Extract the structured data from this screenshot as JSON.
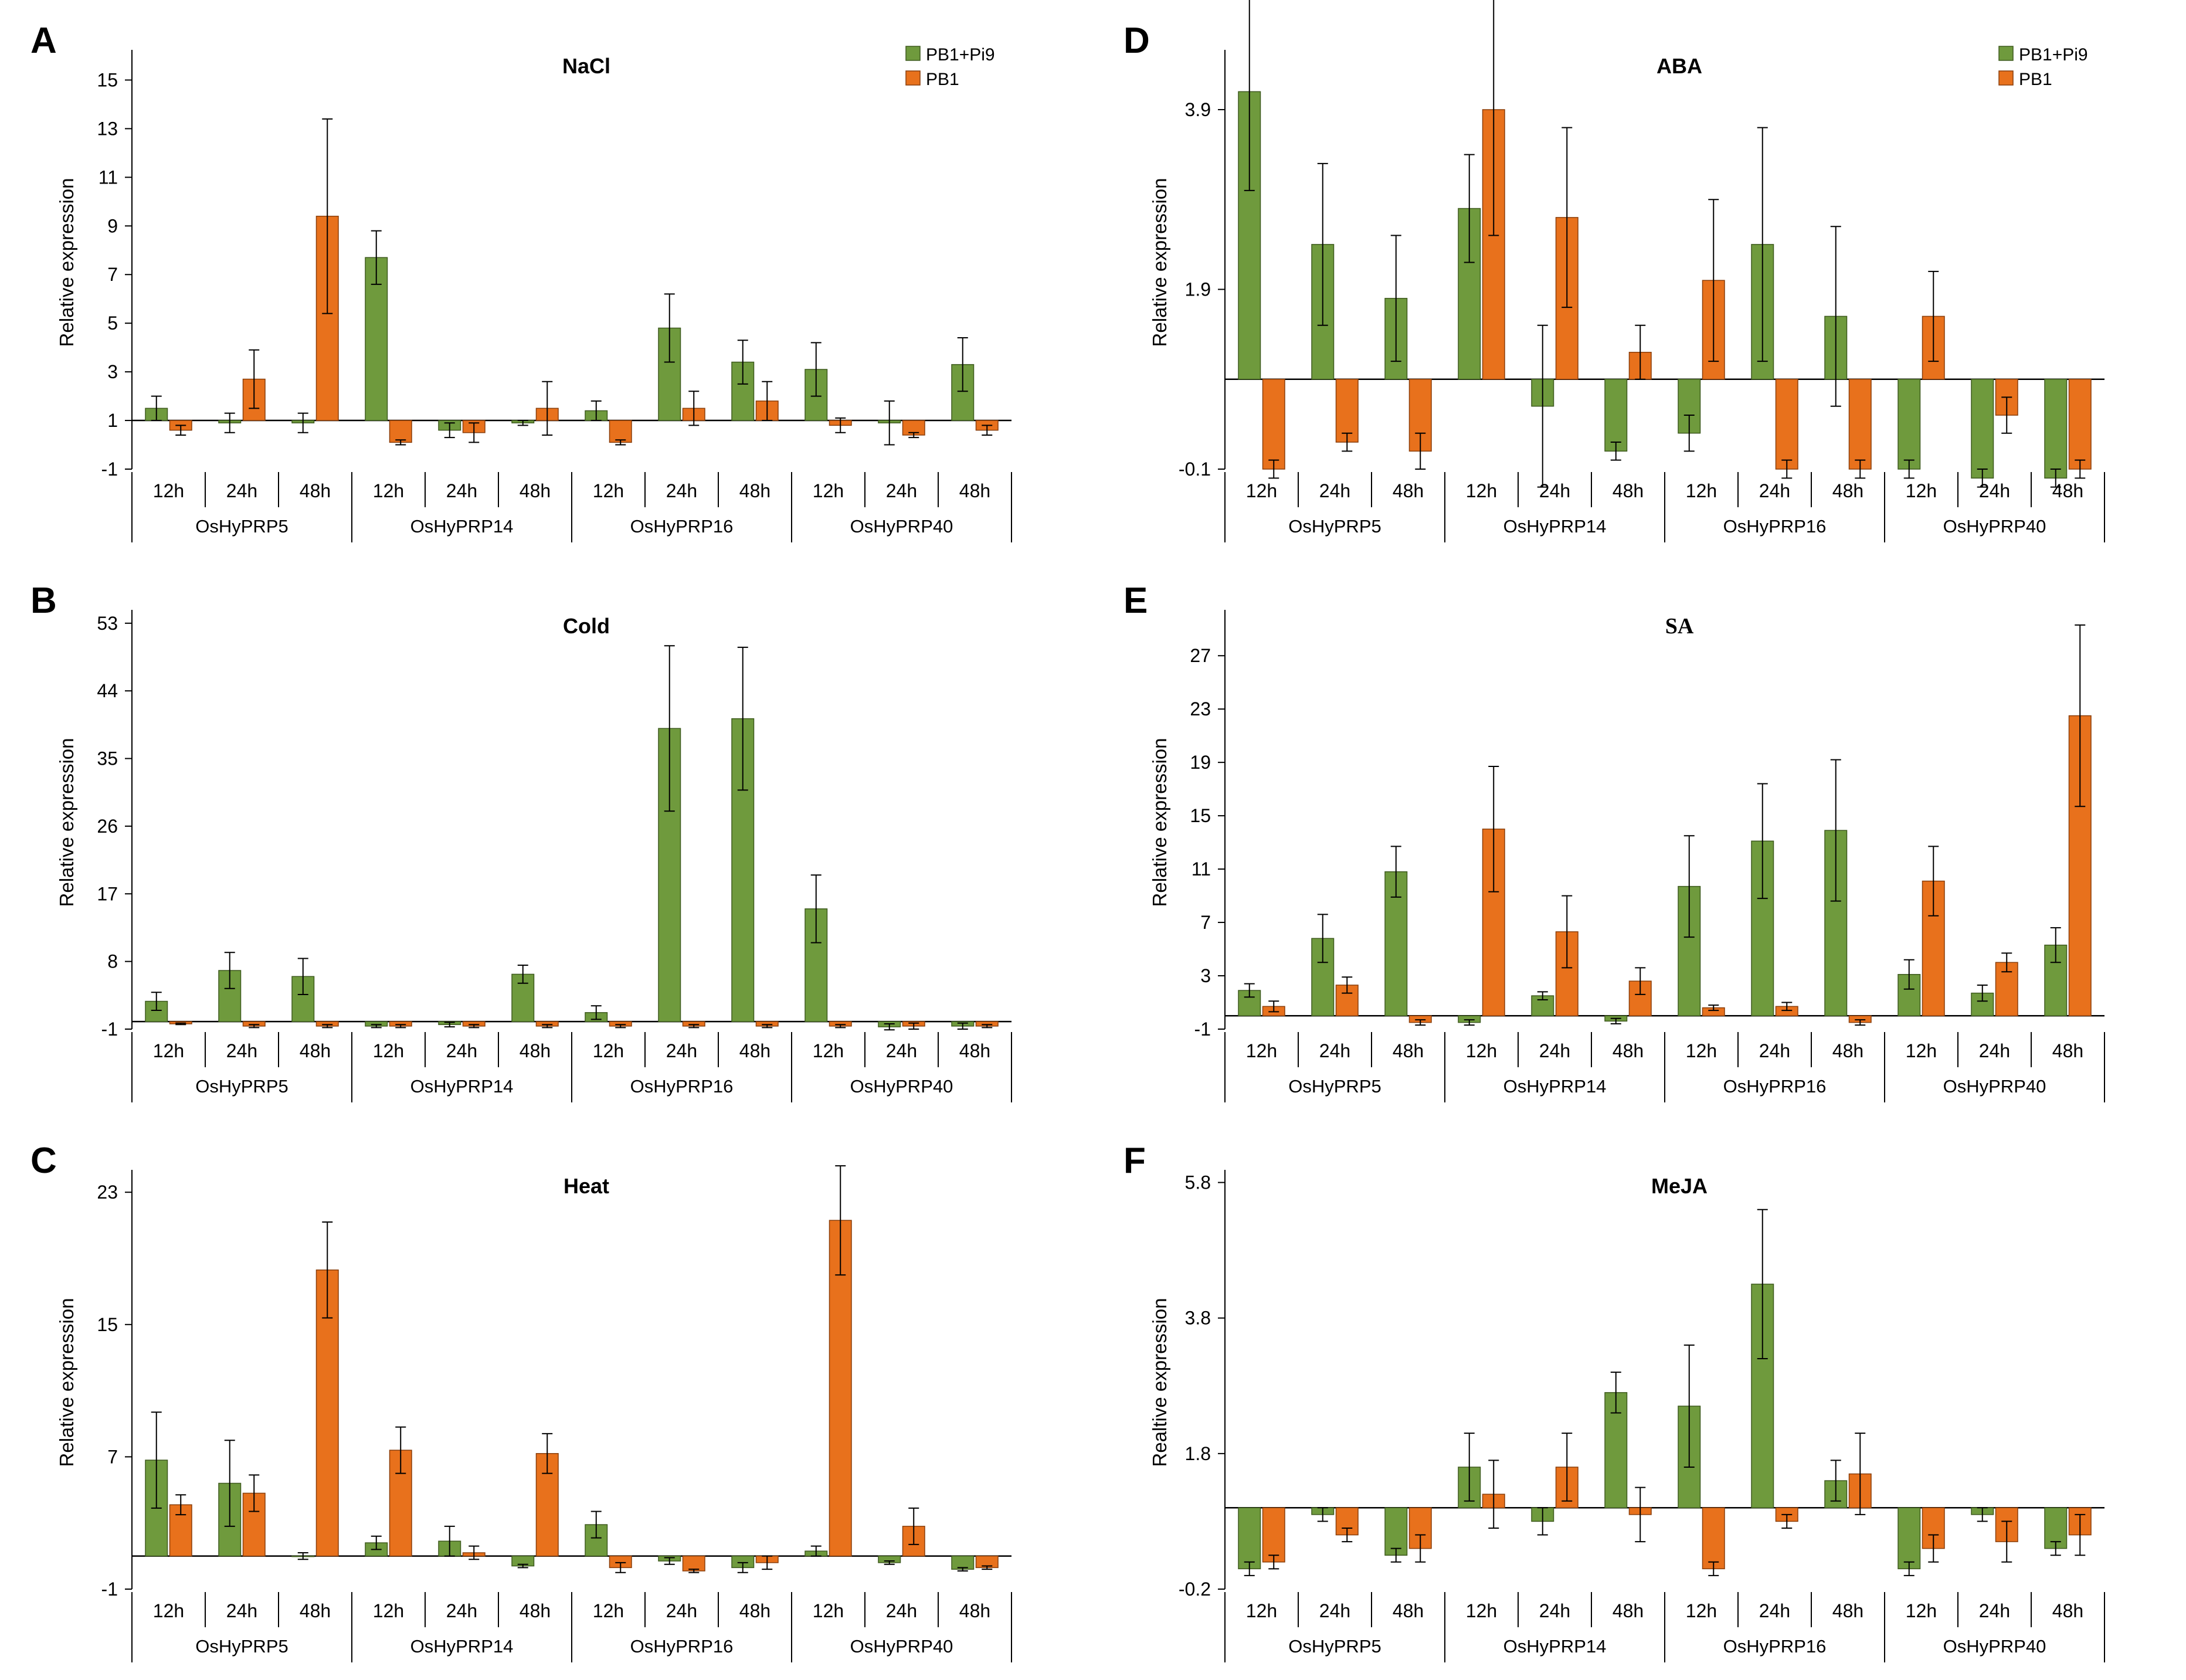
{
  "colors": {
    "series1": "#6f9a3d",
    "series2": "#e8711c",
    "series1_stroke": "#3e5a1e",
    "series2_stroke": "#8a3f0c"
  },
  "legend": [
    "PB1+Pi9",
    "PB1"
  ],
  "chart_data": [
    {
      "panel": "A",
      "type": "bar",
      "title": "NaCl",
      "ylabel": "Relative expression",
      "ylim": [
        -1,
        16
      ],
      "yticks": [
        "-1",
        "1",
        "3",
        "5",
        "7",
        "9",
        "11",
        "13",
        "15"
      ],
      "ytick_values": [
        -1,
        1,
        3,
        5,
        7,
        9,
        11,
        13,
        15
      ],
      "baseline": 1,
      "show_legend": true,
      "groups": [
        "OsHyPRP5",
        "OsHyPRP14",
        "OsHyPRP16",
        "OsHyPRP40"
      ],
      "timepoints": [
        "12h",
        "24h",
        "48h"
      ],
      "series": [
        {
          "name": "PB1+Pi9",
          "values": [
            1.5,
            0.9,
            0.9,
            7.7,
            0.6,
            0.9,
            1.4,
            4.8,
            3.4,
            3.1,
            0.9,
            3.3
          ],
          "errors": [
            0.5,
            0.4,
            0.4,
            1.1,
            0.3,
            0.1,
            0.4,
            1.4,
            0.9,
            1.1,
            0.9,
            1.1
          ]
        },
        {
          "name": "PB1",
          "values": [
            0.6,
            2.7,
            9.4,
            0.1,
            0.5,
            1.5,
            0.1,
            1.5,
            1.8,
            0.8,
            0.4,
            0.6
          ],
          "errors": [
            0.2,
            1.2,
            4.0,
            0.1,
            0.4,
            1.1,
            0.1,
            0.7,
            0.8,
            0.3,
            0.1,
            0.2
          ]
        }
      ]
    },
    {
      "panel": "B",
      "type": "bar",
      "title": "Cold",
      "ylabel": "Relative expression",
      "ylim": [
        -1,
        54
      ],
      "yticks": [
        "-1",
        "8",
        "17",
        "26",
        "35",
        "44",
        "53"
      ],
      "ytick_values": [
        -1,
        8,
        17,
        26,
        35,
        44,
        53
      ],
      "baseline": 0,
      "show_legend": false,
      "groups": [
        "OsHyPRP5",
        "OsHyPRP14",
        "OsHyPRP16",
        "OsHyPRP40"
      ],
      "timepoints": [
        "12h",
        "24h",
        "48h"
      ],
      "series": [
        {
          "name": "PB1+Pi9",
          "values": [
            2.7,
            6.8,
            6.0,
            -0.6,
            -0.4,
            6.3,
            1.2,
            39.0,
            40.3,
            15.0,
            -0.7,
            -0.6
          ],
          "errors": [
            1.2,
            2.4,
            2.4,
            0.2,
            0.3,
            1.2,
            0.9,
            11.0,
            9.5,
            4.5,
            0.4,
            0.4
          ]
        },
        {
          "name": "PB1",
          "values": [
            -0.3,
            -0.6,
            -0.6,
            -0.6,
            -0.6,
            -0.6,
            -0.6,
            -0.6,
            -0.6,
            -0.6,
            -0.6,
            -0.6
          ],
          "errors": [
            0.1,
            0.2,
            0.2,
            0.2,
            0.2,
            0.2,
            0.2,
            0.2,
            0.2,
            0.2,
            0.4,
            0.2
          ]
        }
      ]
    },
    {
      "panel": "C",
      "type": "bar",
      "title": "Heat",
      "ylabel": "Relative expression",
      "ylim": [
        -1,
        24
      ],
      "yticks": [
        "-1",
        "7",
        "15",
        "23"
      ],
      "ytick_values": [
        -1,
        7,
        15,
        23
      ],
      "baseline": 1,
      "show_legend": false,
      "groups": [
        "OsHyPRP5",
        "OsHyPRP14",
        "OsHyPRP16",
        "OsHyPRP40"
      ],
      "timepoints": [
        "12h",
        "24h",
        "48h"
      ],
      "series": [
        {
          "name": "PB1+Pi9",
          "values": [
            6.8,
            5.4,
            1.0,
            1.8,
            1.9,
            0.4,
            2.9,
            0.7,
            0.3,
            1.3,
            0.6,
            0.2
          ],
          "errors": [
            2.9,
            2.6,
            0.2,
            0.4,
            0.9,
            0.1,
            0.8,
            0.2,
            0.3,
            0.3,
            0.1,
            0.1
          ]
        },
        {
          "name": "PB1",
          "values": [
            4.1,
            4.8,
            18.3,
            7.4,
            1.2,
            7.2,
            0.3,
            0.1,
            0.6,
            21.3,
            2.8,
            0.3
          ],
          "errors": [
            0.6,
            1.1,
            2.9,
            1.4,
            0.4,
            1.2,
            0.3,
            0.1,
            0.4,
            3.3,
            1.1,
            0.1
          ]
        }
      ]
    },
    {
      "panel": "D",
      "type": "bar",
      "title": "ABA",
      "ylabel": "Relative expression",
      "ylim": [
        -0.1,
        4.5
      ],
      "yticks": [
        "-0.1",
        "1.9",
        "3.9"
      ],
      "ytick_values": [
        -0.1,
        1.9,
        3.9
      ],
      "baseline": 0.9,
      "show_legend": true,
      "groups": [
        "OsHyPRP5",
        "OsHyPRP14",
        "OsHyPRP16",
        "OsHyPRP40"
      ],
      "timepoints": [
        "12h",
        "24h",
        "48h"
      ],
      "series": [
        {
          "name": "PB1+Pi9",
          "values": [
            4.1,
            2.4,
            1.8,
            2.8,
            0.6,
            0.1,
            0.3,
            2.4,
            1.6,
            -0.1,
            -0.2,
            -0.2
          ],
          "errors": [
            1.1,
            0.9,
            0.7,
            0.6,
            0.9,
            0.1,
            0.2,
            1.3,
            1.0,
            0.1,
            0.1,
            0.1
          ]
        },
        {
          "name": "PB1",
          "values": [
            -0.1,
            0.2,
            0.1,
            3.9,
            2.7,
            1.2,
            2.0,
            -0.1,
            -0.1,
            1.6,
            0.5,
            -0.1
          ],
          "errors": [
            0.1,
            0.1,
            0.2,
            1.4,
            1.0,
            0.3,
            0.9,
            0.1,
            0.1,
            0.5,
            0.2,
            0.1
          ]
        }
      ]
    },
    {
      "panel": "E",
      "type": "bar",
      "title": "SA",
      "ylabel": "Relative expression",
      "ylim": [
        -1,
        30
      ],
      "yticks": [
        "-1",
        "3",
        "7",
        "11",
        "15",
        "19",
        "23",
        "27"
      ],
      "ytick_values": [
        -1,
        3,
        7,
        11,
        15,
        19,
        23,
        27
      ],
      "baseline": 0,
      "show_legend": false,
      "groups": [
        "OsHyPRP5",
        "OsHyPRP14",
        "OsHyPRP16",
        "OsHyPRP40"
      ],
      "timepoints": [
        "12h",
        "24h",
        "48h"
      ],
      "series": [
        {
          "name": "PB1+Pi9",
          "values": [
            1.9,
            5.8,
            10.8,
            -0.5,
            1.5,
            -0.4,
            9.7,
            13.1,
            13.9,
            3.1,
            1.7,
            5.3
          ],
          "errors": [
            0.5,
            1.8,
            1.9,
            0.2,
            0.3,
            0.2,
            3.8,
            4.3,
            5.3,
            1.1,
            0.6,
            1.3
          ]
        },
        {
          "name": "PB1",
          "values": [
            0.7,
            2.3,
            -0.5,
            14.0,
            6.3,
            2.6,
            0.6,
            0.7,
            -0.5,
            10.1,
            4.0,
            22.5
          ],
          "errors": [
            0.4,
            0.6,
            0.2,
            4.7,
            2.7,
            1.0,
            0.2,
            0.3,
            0.2,
            2.6,
            0.7,
            6.8
          ]
        }
      ]
    },
    {
      "panel": "F",
      "type": "bar",
      "title": "MeJA",
      "ylabel": "Realtive expression",
      "ylim": [
        -0.2,
        5.9
      ],
      "yticks": [
        "-0.2",
        "1.8",
        "3.8",
        "5.8"
      ],
      "ytick_values": [
        -0.2,
        1.8,
        3.8,
        5.8
      ],
      "baseline": 1,
      "show_legend": false,
      "groups": [
        "OsHyPRP5",
        "OsHyPRP14",
        "OsHyPRP16",
        "OsHyPRP40"
      ],
      "timepoints": [
        "12h",
        "24h",
        "48h"
      ],
      "series": [
        {
          "name": "PB1+Pi9",
          "values": [
            0.1,
            0.9,
            0.3,
            1.6,
            0.8,
            2.7,
            2.5,
            4.3,
            1.4,
            0.1,
            0.9,
            0.4
          ],
          "errors": [
            0.1,
            0.1,
            0.1,
            0.5,
            0.2,
            0.3,
            0.9,
            1.1,
            0.3,
            0.1,
            0.1,
            0.1
          ]
        },
        {
          "name": "PB1",
          "values": [
            0.2,
            0.6,
            0.4,
            1.2,
            1.6,
            0.9,
            0.1,
            0.8,
            1.5,
            0.4,
            0.5,
            0.6
          ],
          "errors": [
            0.1,
            0.1,
            0.2,
            0.5,
            0.5,
            0.4,
            0.1,
            0.1,
            0.6,
            0.2,
            0.3,
            0.3
          ]
        }
      ]
    }
  ]
}
